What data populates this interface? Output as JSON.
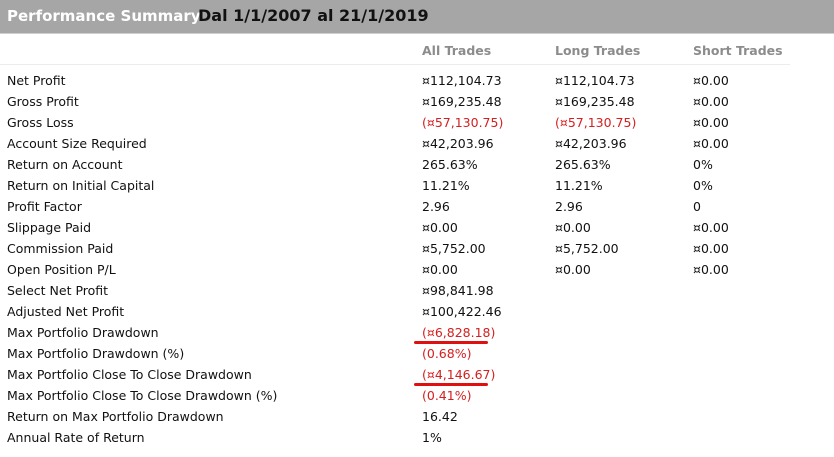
{
  "header": {
    "title": "Performance Summary",
    "date_range": "Dal 1/1/2007 al 21/1/2019"
  },
  "columns": [
    "All Trades",
    "Long Trades",
    "Short Trades"
  ],
  "rows": [
    {
      "label": "Net Profit",
      "all": "¤112,104.73",
      "long": "¤112,104.73",
      "short": "¤0.00"
    },
    {
      "label": "Gross Profit",
      "all": "¤169,235.48",
      "long": "¤169,235.48",
      "short": "¤0.00"
    },
    {
      "label": "Gross Loss",
      "all": "(¤57,130.75)",
      "long": "(¤57,130.75)",
      "short": "¤0.00"
    },
    {
      "label": "Account Size Required",
      "all": "¤42,203.96",
      "long": "¤42,203.96",
      "short": "¤0.00"
    },
    {
      "label": "Return on Account",
      "all": "265.63%",
      "long": "265.63%",
      "short": "0%"
    },
    {
      "label": "Return on Initial Capital",
      "all": "11.21%",
      "long": "11.21%",
      "short": "0%"
    },
    {
      "label": "Profit Factor",
      "all": "2.96",
      "long": "2.96",
      "short": "0"
    },
    {
      "label": "Slippage Paid",
      "all": "¤0.00",
      "long": "¤0.00",
      "short": "¤0.00"
    },
    {
      "label": "Commission Paid",
      "all": "¤5,752.00",
      "long": "¤5,752.00",
      "short": "¤0.00"
    },
    {
      "label": "Open Position P/L",
      "all": "¤0.00",
      "long": "¤0.00",
      "short": "¤0.00"
    },
    {
      "label": "Select Net Profit",
      "all": "¤98,841.98",
      "long": "",
      "short": ""
    },
    {
      "label": "Adjusted Net Profit",
      "all": "¤100,422.46",
      "long": "",
      "short": ""
    },
    {
      "label": "Max Portfolio Drawdown",
      "all": "(¤6,828.18)",
      "long": "",
      "short": ""
    },
    {
      "label": "Max Portfolio Drawdown (%)",
      "all": "(0.68%)",
      "long": "",
      "short": ""
    },
    {
      "label": "Max Portfolio Close To Close Drawdown",
      "all": "(¤4,146.67)",
      "long": "",
      "short": ""
    },
    {
      "label": "Max Portfolio Close To Close Drawdown (%)",
      "all": "(0.41%)",
      "long": "",
      "short": ""
    },
    {
      "label": "Return on Max Portfolio Drawdown",
      "all": "16.42",
      "long": "",
      "short": ""
    },
    {
      "label": "Annual Rate of Return",
      "all": "1%",
      "long": "",
      "short": ""
    }
  ],
  "colors": {
    "header_bg": "#a6a6a6",
    "negative": "#d42020",
    "annotation": "#e01010",
    "column_header": "#8c8c8c"
  }
}
